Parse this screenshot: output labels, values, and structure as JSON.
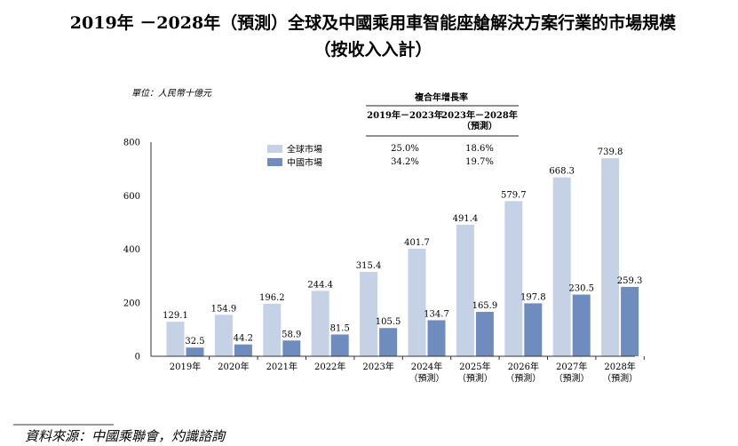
{
  "chart_data": {
    "type": "bar",
    "title": "2019年 －2028年（預測）全球及中國乘用車智能座艙解決方案行業的市場規模",
    "subtitle": "（按收入入計）",
    "unit_label": "單位：人民幣十億元",
    "categories": [
      [
        "2019年"
      ],
      [
        "2020年"
      ],
      [
        "2021年"
      ],
      [
        "2022年"
      ],
      [
        "2023年"
      ],
      [
        "2024年",
        "（預測）"
      ],
      [
        "2025年",
        "（預測）"
      ],
      [
        "2026年",
        "（預測）"
      ],
      [
        "2027年",
        "（預測）"
      ],
      [
        "2028年",
        "（預測）"
      ]
    ],
    "series": [
      {
        "name": "全球市場",
        "color": "#c5d2e6",
        "values": [
          129.1,
          154.9,
          196.2,
          244.4,
          315.4,
          401.7,
          491.4,
          579.7,
          668.3,
          739.8
        ]
      },
      {
        "name": "中國市場",
        "color": "#6e8dbe",
        "values": [
          32.5,
          44.2,
          58.9,
          81.5,
          105.5,
          134.7,
          165.9,
          197.8,
          230.5,
          259.3
        ]
      }
    ],
    "ylim": [
      0,
      800
    ],
    "yticks": [
      0,
      200,
      400,
      600,
      800
    ],
    "cagr_table": {
      "header": "複合年增長率",
      "columns": [
        [
          "2019年－2023年"
        ],
        [
          "2023年－2028年",
          "（預測）"
        ]
      ],
      "rows": [
        [
          "25.0%",
          "18.6%"
        ],
        [
          "34.2%",
          "19.7%"
        ]
      ]
    },
    "source": "資料來源：中國乘聯會，灼識諮詢"
  }
}
